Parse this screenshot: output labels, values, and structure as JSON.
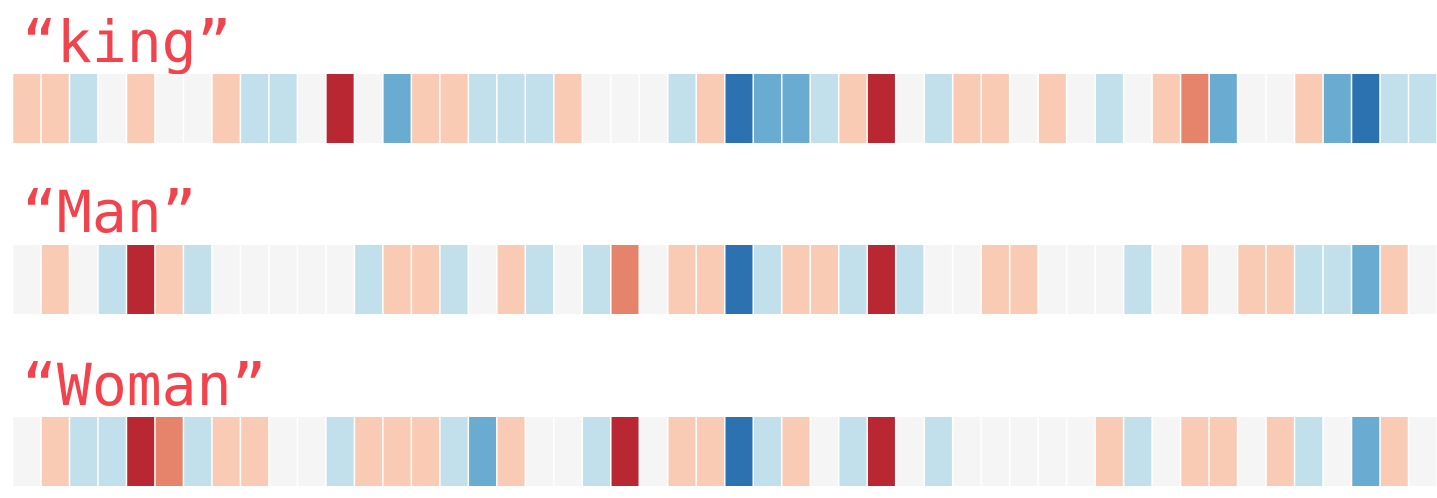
{
  "chart_data": [
    {
      "type": "heatmap",
      "title": "“king”",
      "vlim": [
        -2,
        2
      ],
      "colormap": [
        "#2c72b0",
        "#6aabd1",
        "#c2dfec",
        "#f5f5f5",
        "#f9cbb5",
        "#e6836b",
        "#b92732"
      ],
      "values": [
        0.7,
        0.7,
        -0.7,
        0,
        0.7,
        0,
        0,
        0.7,
        -0.7,
        -0.7,
        0,
        2,
        0,
        -1.3,
        0.7,
        0.7,
        -0.7,
        -0.7,
        -0.7,
        0.7,
        0,
        0,
        0,
        -0.7,
        0.7,
        -2,
        -1.3,
        -1.3,
        -0.7,
        0.7,
        2,
        0,
        -0.7,
        0.7,
        0.7,
        0,
        0.7,
        0,
        -0.7,
        0,
        0.7,
        1.3,
        -1.3,
        0,
        0,
        0.7,
        -1.3,
        -2,
        -0.7,
        -0.7
      ]
    },
    {
      "type": "heatmap",
      "title": "“Man”",
      "vlim": [
        -2,
        2
      ],
      "colormap": [
        "#2c72b0",
        "#6aabd1",
        "#c2dfec",
        "#f5f5f5",
        "#f9cbb5",
        "#e6836b",
        "#b92732"
      ],
      "values": [
        0,
        0.7,
        0,
        -0.7,
        2,
        0.7,
        -0.7,
        0,
        0,
        0,
        0,
        0,
        -0.7,
        0.7,
        0.7,
        -0.7,
        0,
        0.7,
        -0.7,
        0,
        -0.7,
        1.3,
        0,
        0.7,
        0.7,
        -2,
        -0.7,
        0.7,
        0.7,
        -0.7,
        2,
        -0.7,
        0,
        0,
        0.7,
        0.7,
        0,
        0,
        0,
        -0.7,
        0,
        0.7,
        0,
        0.7,
        0.7,
        -0.7,
        -0.7,
        -1.3,
        0.7,
        0
      ]
    },
    {
      "type": "heatmap",
      "title": "“Woman”",
      "vlim": [
        -2,
        2
      ],
      "colormap": [
        "#2c72b0",
        "#6aabd1",
        "#c2dfec",
        "#f5f5f5",
        "#f9cbb5",
        "#e6836b",
        "#b92732"
      ],
      "values": [
        0,
        0.7,
        -0.7,
        -0.7,
        2,
        1.3,
        -0.7,
        0.7,
        0.7,
        0,
        0,
        -0.7,
        0.7,
        0.7,
        0.7,
        -0.7,
        -1.3,
        0.7,
        0,
        0,
        -0.7,
        2,
        0,
        0.7,
        0.7,
        -2,
        -0.7,
        0.7,
        0,
        -0.7,
        2,
        0,
        -0.7,
        0,
        0,
        0,
        0,
        0,
        0.7,
        -0.7,
        0,
        0.7,
        0.7,
        0,
        0.7,
        -0.7,
        0,
        -1.3,
        0.7,
        0
      ]
    }
  ]
}
